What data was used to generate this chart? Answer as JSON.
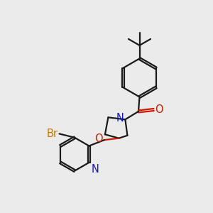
{
  "bg_color": "#ebebeb",
  "bond_color": "#1a1a1a",
  "nitrogen_color": "#1414cc",
  "oxygen_color": "#cc1a00",
  "bromine_color": "#cc7700",
  "line_width": 1.6,
  "font_size": 10.5,
  "fig_w": 3.0,
  "fig_h": 3.0,
  "dpi": 100,
  "xlim": [
    0,
    10
  ],
  "ylim": [
    0,
    10
  ]
}
